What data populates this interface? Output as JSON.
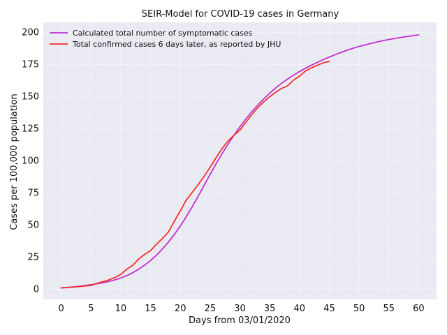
{
  "chart_data": {
    "type": "line",
    "title": "SEIR-Model for COVID-19 cases in Germany",
    "xlabel": "Days from 03/01/2020",
    "ylabel": "Cases per 100,000 population",
    "xlim": [
      -3,
      63
    ],
    "ylim": [
      -8,
      208
    ],
    "xticks": [
      0,
      5,
      10,
      15,
      20,
      25,
      30,
      35,
      40,
      45,
      50,
      55,
      60
    ],
    "yticks": [
      0,
      25,
      50,
      75,
      100,
      125,
      150,
      175,
      200
    ],
    "grid": true,
    "legend_position": "top-left",
    "series": [
      {
        "name": "Calculated total number of symptomatic cases",
        "color": "#bf2fd0",
        "x": [
          0,
          1,
          2,
          3,
          4,
          5,
          6,
          7,
          8,
          9,
          10,
          11,
          12,
          13,
          14,
          15,
          16,
          17,
          18,
          19,
          20,
          21,
          22,
          23,
          24,
          25,
          26,
          27,
          28,
          29,
          30,
          31,
          32,
          33,
          34,
          35,
          36,
          37,
          38,
          39,
          40,
          41,
          42,
          43,
          44,
          45,
          46,
          47,
          48,
          49,
          50,
          51,
          52,
          53,
          54,
          55,
          56,
          57,
          58,
          59,
          60
        ],
        "y": [
          1,
          1.3,
          1.7,
          2.2,
          2.8,
          3.5,
          4.2,
          5.0,
          6.0,
          7.2,
          8.7,
          10.5,
          12.8,
          15.5,
          18.7,
          22.3,
          26.5,
          31.3,
          36.7,
          42.7,
          49.3,
          56.5,
          64.3,
          72.5,
          81.0,
          89.5,
          97.7,
          105.6,
          113.0,
          120.0,
          126.5,
          132.6,
          138.3,
          143.5,
          148.3,
          152.8,
          156.8,
          160.5,
          163.8,
          166.8,
          169.6,
          172.2,
          174.6,
          176.8,
          178.9,
          180.9,
          182.8,
          184.6,
          186.3,
          187.8,
          189.2,
          190.4,
          191.6,
          192.7,
          193.7,
          194.6,
          195.4,
          196.2,
          196.9,
          197.6,
          198.2
        ]
      },
      {
        "name": "Total confirmed cases 6 days later, as reported by JHU",
        "color": "#f0302c",
        "x": [
          0,
          1,
          2,
          3,
          4,
          5,
          6,
          7,
          8,
          9,
          10,
          11,
          12,
          13,
          14,
          15,
          16,
          17,
          18,
          19,
          20,
          21,
          22,
          23,
          24,
          25,
          26,
          27,
          28,
          29,
          30,
          31,
          32,
          33,
          34,
          35,
          36,
          37,
          38,
          39,
          40,
          41,
          42,
          43,
          44,
          45
        ],
        "y": [
          1,
          1.2,
          1.6,
          2.0,
          2.5,
          2.8,
          4.5,
          5.8,
          7.2,
          9.0,
          11.5,
          15.5,
          18.5,
          23.5,
          27.0,
          30.0,
          35.0,
          39.5,
          44.5,
          53.0,
          61.0,
          69.5,
          75.5,
          81.5,
          88.0,
          95.0,
          102.5,
          109.5,
          115.5,
          120.0,
          124.0,
          130.0,
          136.0,
          141.5,
          146.0,
          150.0,
          153.5,
          156.5,
          158.5,
          163.0,
          166.0,
          170.0,
          172.5,
          174.5,
          176.5,
          177.5
        ]
      }
    ]
  }
}
